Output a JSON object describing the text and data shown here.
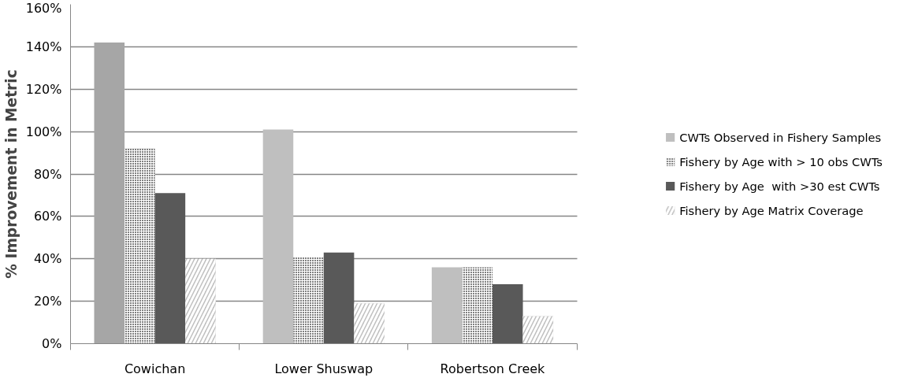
{
  "chart_data": {
    "type": "bar",
    "ylabel": "% Improvement in Metric",
    "categories": [
      "Cowichan",
      "Lower Shuswap",
      "Robertson Creek"
    ],
    "series": [
      {
        "name": "CWTs Observed in Fishery Samples",
        "color": "#bfbfbf",
        "colors": [
          "#a6a6a6",
          "#bfbfbf",
          "#bfbfbf"
        ],
        "values": [
          142,
          101,
          36
        ]
      },
      {
        "name": "Fishery by Age with > 10 obs CWTs",
        "color": "#808080",
        "values": [
          92,
          41,
          36
        ]
      },
      {
        "name": "Fishery by Age  with >30 est CWTs",
        "color": "#595959",
        "values": [
          71,
          43,
          28
        ]
      },
      {
        "name": "Fishery by Age Matrix Coverage",
        "color": "#bfbfbf",
        "values": [
          40,
          19,
          13
        ]
      }
    ],
    "ylim": [
      0,
      160
    ],
    "yticks": [
      {
        "value": 0,
        "label": "0%"
      },
      {
        "value": 20,
        "label": "20%"
      },
      {
        "value": 40,
        "label": "40%"
      },
      {
        "value": 60,
        "label": "60%"
      },
      {
        "value": 80,
        "label": "80%"
      },
      {
        "value": 100,
        "label": "100%"
      },
      {
        "value": 120,
        "label": "120%"
      },
      {
        "value": 140,
        "label": "140%"
      },
      {
        "value": 160,
        "label": "160%"
      }
    ],
    "grid": "y",
    "legend": "right"
  }
}
